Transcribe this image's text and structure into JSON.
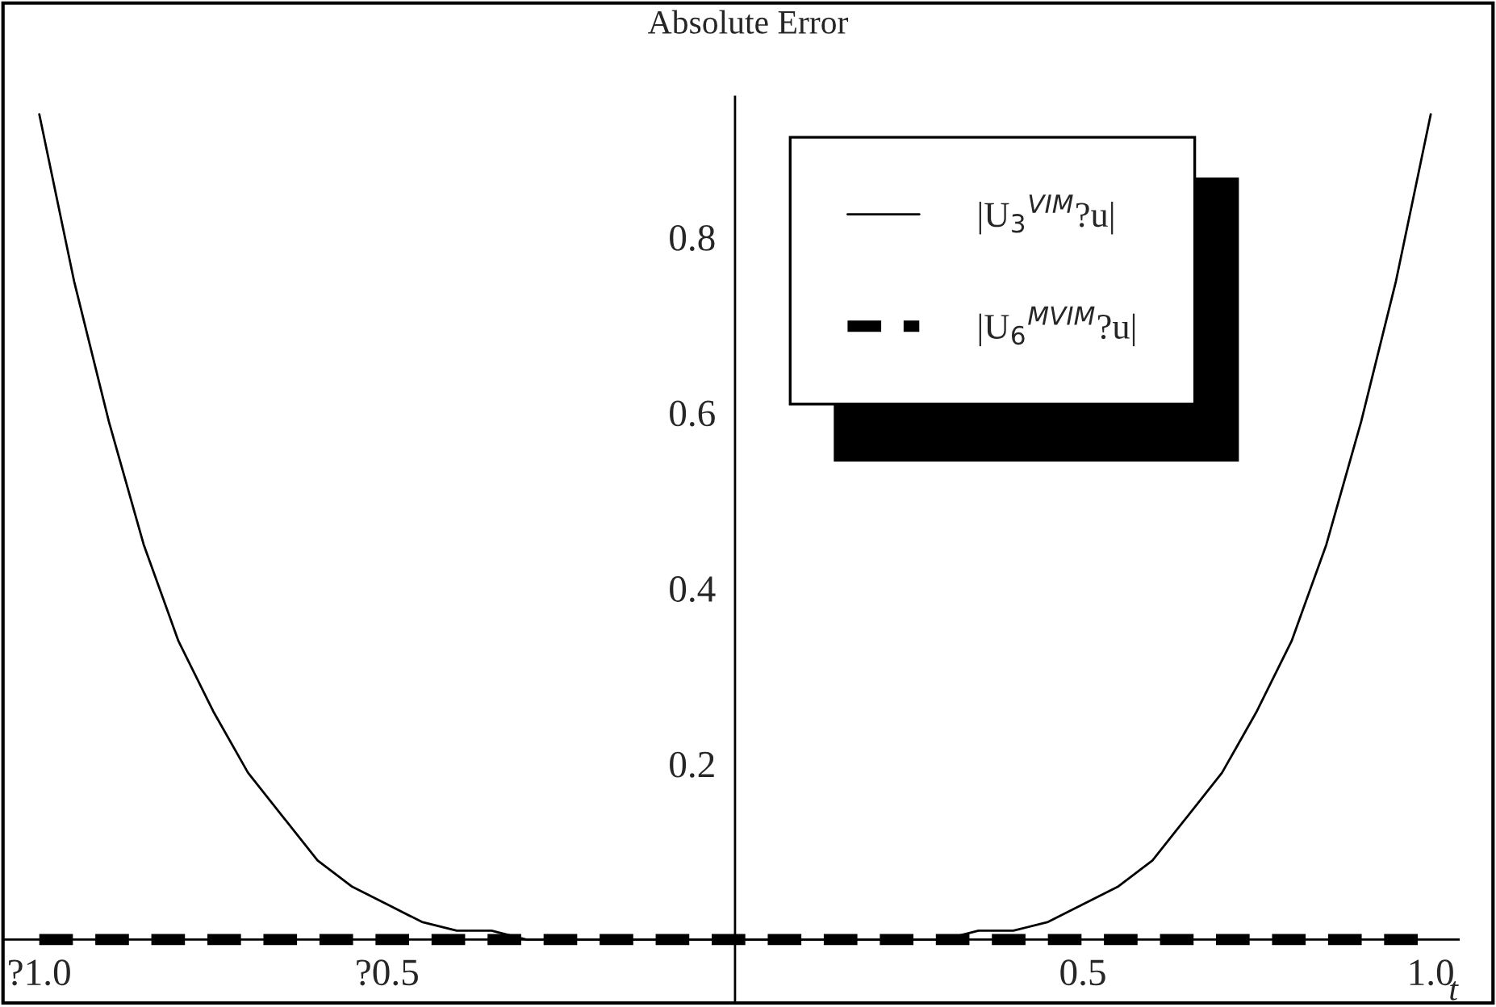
{
  "chart_data": {
    "type": "line",
    "title": "Absolute Error",
    "xlabel": "t",
    "x": [
      -1.0,
      -0.95,
      -0.9,
      -0.85,
      -0.8,
      -0.75,
      -0.7,
      -0.65,
      -0.6,
      -0.55,
      -0.5,
      -0.45,
      -0.4,
      -0.35,
      -0.3,
      -0.2,
      0.0,
      0.2,
      0.3,
      0.35,
      0.4,
      0.45,
      0.5,
      0.55,
      0.6,
      0.65,
      0.7,
      0.75,
      0.8,
      0.85,
      0.9,
      0.95,
      1.0
    ],
    "series": [
      {
        "name": "|U$_{3}$$^{VIM}$?u|",
        "color": "#000000",
        "line_style": "solid",
        "values": [
          0.94,
          0.75,
          0.59,
          0.45,
          0.34,
          0.26,
          0.19,
          0.14,
          0.09,
          0.06,
          0.04,
          0.02,
          0.01,
          0.01,
          0.0,
          0.0,
          0.0,
          0.0,
          0.0,
          0.01,
          0.01,
          0.02,
          0.04,
          0.06,
          0.09,
          0.14,
          0.19,
          0.26,
          0.34,
          0.45,
          0.59,
          0.75,
          0.94
        ]
      },
      {
        "name": "|U$_{6}$$^{MVIM}$?u|",
        "color": "#000000",
        "line_style": "dashed",
        "values": [
          0,
          0,
          0,
          0,
          0,
          0,
          0,
          0,
          0,
          0,
          0,
          0,
          0,
          0,
          0,
          0,
          0,
          0,
          0,
          0,
          0,
          0,
          0,
          0,
          0,
          0,
          0,
          0,
          0,
          0,
          0,
          0,
          0
        ]
      }
    ],
    "xlim": [
      -1.05,
      1.04
    ],
    "ylim": [
      -0.07,
      0.96
    ],
    "xticks": [
      {
        "value": -1.0,
        "label": "?1.0"
      },
      {
        "value": -0.5,
        "label": "?0.5"
      },
      {
        "value": 0.5,
        "label": "0.5"
      },
      {
        "value": 1.0,
        "label": "1.0"
      }
    ],
    "yticks": [
      {
        "value": 0.2,
        "label": "0.2"
      },
      {
        "value": 0.4,
        "label": "0.4"
      },
      {
        "value": 0.6,
        "label": "0.6"
      },
      {
        "value": 0.8,
        "label": "0.8"
      }
    ],
    "grid": false,
    "legend": "top right",
    "marker": "none"
  }
}
